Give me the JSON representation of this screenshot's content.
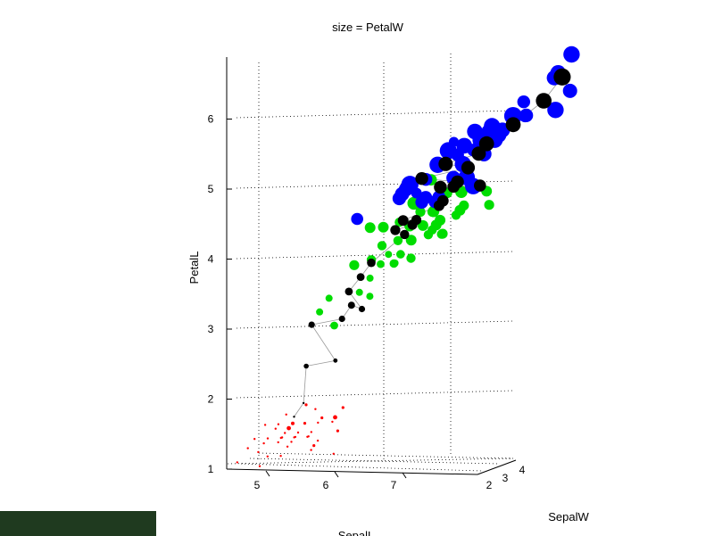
{
  "chart_data": {
    "type": "scatter",
    "title": "size = PetalW",
    "xlabel": "SepalL",
    "ylabel": "PetalL",
    "zlabel": "SepalW",
    "x_ticks": [
      "5",
      "6",
      "7"
    ],
    "y_ticks": [
      "1",
      "2",
      "3",
      "4",
      "5",
      "6"
    ],
    "z_ticks": [
      "2",
      "3",
      "4"
    ],
    "ylim": [
      1,
      7
    ],
    "grid": true,
    "series": [
      {
        "color": "#ff0000",
        "points": [
          [
            4.3,
            1.1,
            0.1
          ],
          [
            4.4,
            1.3,
            0.2
          ],
          [
            4.5,
            1.3,
            0.3
          ],
          [
            4.6,
            1.4,
            0.2
          ],
          [
            4.7,
            1.3,
            0.2
          ],
          [
            4.8,
            1.6,
            0.2
          ],
          [
            4.9,
            1.4,
            0.2
          ],
          [
            5.0,
            1.4,
            0.2
          ],
          [
            5.0,
            1.5,
            0.2
          ],
          [
            5.1,
            1.5,
            0.3
          ],
          [
            5.1,
            1.4,
            0.2
          ],
          [
            5.2,
            1.5,
            0.2
          ],
          [
            5.3,
            1.5,
            0.2
          ],
          [
            5.4,
            1.7,
            0.4
          ],
          [
            5.4,
            1.5,
            0.2
          ],
          [
            5.5,
            1.4,
            0.2
          ],
          [
            5.7,
            1.7,
            0.3
          ],
          [
            5.8,
            1.2,
            0.2
          ],
          [
            5.1,
            1.9,
            0.4
          ],
          [
            5.0,
            1.6,
            0.6
          ],
          [
            5.7,
            1.5,
            0.4
          ],
          [
            5.4,
            1.3,
            0.4
          ],
          [
            4.8,
            1.4,
            0.1
          ],
          [
            5.0,
            1.2,
            0.2
          ],
          [
            5.2,
            1.4,
            0.2
          ],
          [
            4.9,
            1.5,
            0.1
          ],
          [
            5.1,
            1.7,
            0.5
          ],
          [
            4.6,
            1.0,
            0.2
          ],
          [
            5.5,
            1.3,
            0.2
          ],
          [
            5.3,
            1.6,
            0.2
          ],
          [
            4.4,
            1.4,
            0.2
          ],
          [
            5.0,
            1.3,
            0.3
          ],
          [
            4.5,
            1.6,
            0.2
          ],
          [
            5.6,
            1.7,
            0.6
          ],
          [
            4.9,
            1.8,
            0.2
          ],
          [
            4.7,
            1.6,
            0.2
          ],
          [
            5.1,
            1.6,
            0.4
          ],
          [
            5.2,
            1.8,
            0.3
          ],
          [
            5.8,
            1.9,
            0.4
          ],
          [
            4.8,
            1.2,
            0.2
          ]
        ]
      },
      {
        "color": "#00dd00",
        "points": [
          [
            5.0,
            3.3,
            1.0
          ],
          [
            4.9,
            3.4,
            1.0
          ],
          [
            5.1,
            3.0,
            1.1
          ],
          [
            5.4,
            3.5,
            1.0
          ],
          [
            5.6,
            3.9,
            1.1
          ],
          [
            5.5,
            4.0,
            1.3
          ],
          [
            5.6,
            4.2,
            1.3
          ],
          [
            5.7,
            4.2,
            1.3
          ],
          [
            5.8,
            4.0,
            1.2
          ],
          [
            5.9,
            4.8,
            1.8
          ],
          [
            6.0,
            4.5,
            1.5
          ],
          [
            6.0,
            4.0,
            1.0
          ],
          [
            6.1,
            4.7,
            1.4
          ],
          [
            6.2,
            4.5,
            1.5
          ],
          [
            6.3,
            4.9,
            1.5
          ],
          [
            6.4,
            4.5,
            1.5
          ],
          [
            6.5,
            4.6,
            1.5
          ],
          [
            6.6,
            4.6,
            1.3
          ],
          [
            6.7,
            4.7,
            1.5
          ],
          [
            6.8,
            4.8,
            1.4
          ],
          [
            6.9,
            4.9,
            1.5
          ],
          [
            7.0,
            4.7,
            1.4
          ],
          [
            5.2,
            3.9,
            1.4
          ],
          [
            5.7,
            4.5,
            1.3
          ],
          [
            6.3,
            4.4,
            1.3
          ],
          [
            5.5,
            3.7,
            1.0
          ],
          [
            5.8,
            4.1,
            1.0
          ],
          [
            6.1,
            4.0,
            1.3
          ],
          [
            6.2,
            4.3,
            1.3
          ],
          [
            5.9,
            4.2,
            1.5
          ],
          [
            5.6,
            4.5,
            1.5
          ],
          [
            6.7,
            5.0,
            1.7
          ],
          [
            6.0,
            5.1,
            1.6
          ],
          [
            5.4,
            4.5,
            1.5
          ],
          [
            6.6,
            4.4,
            1.4
          ],
          [
            6.4,
            4.3,
            1.3
          ],
          [
            6.1,
            4.6,
            1.4
          ],
          [
            5.7,
            3.5,
            1.0
          ],
          [
            6.3,
            4.7,
            1.6
          ],
          [
            5.8,
            3.9,
            1.2
          ]
        ]
      },
      {
        "color": "#0000ff",
        "points": [
          [
            4.9,
            4.5,
            1.7
          ],
          [
            5.6,
            4.9,
            2.0
          ],
          [
            5.8,
            5.1,
            2.4
          ],
          [
            6.0,
            5.0,
            1.5
          ],
          [
            6.1,
            5.6,
            1.4
          ],
          [
            6.2,
            5.4,
            2.3
          ],
          [
            6.3,
            5.6,
            2.4
          ],
          [
            6.4,
            5.3,
            2.3
          ],
          [
            6.5,
            5.5,
            1.8
          ],
          [
            6.7,
            5.7,
            2.5
          ],
          [
            6.8,
            5.9,
            2.3
          ],
          [
            6.9,
            5.7,
            2.3
          ],
          [
            7.1,
            5.9,
            2.1
          ],
          [
            7.2,
            6.0,
            1.8
          ],
          [
            7.3,
            6.3,
            1.8
          ],
          [
            7.6,
            6.6,
            2.1
          ],
          [
            7.7,
            6.7,
            2.2
          ],
          [
            7.7,
            6.9,
            2.3
          ],
          [
            7.9,
            6.4,
            2.0
          ],
          [
            7.4,
            6.1,
            1.9
          ],
          [
            6.4,
            5.6,
            2.2
          ],
          [
            6.3,
            5.1,
            1.5
          ],
          [
            6.5,
            5.8,
            2.2
          ],
          [
            6.7,
            5.8,
            1.8
          ],
          [
            6.9,
            5.1,
            2.3
          ],
          [
            5.7,
            5.0,
            2.0
          ],
          [
            5.9,
            5.1,
            1.8
          ],
          [
            6.2,
            4.8,
            1.8
          ],
          [
            6.3,
            4.9,
            1.8
          ],
          [
            6.4,
            5.5,
            1.8
          ],
          [
            6.0,
            4.8,
            1.8
          ],
          [
            5.8,
            5.1,
            1.9
          ],
          [
            7.2,
            6.1,
            2.5
          ],
          [
            7.7,
            6.1,
            2.3
          ],
          [
            6.7,
            5.2,
            2.3
          ],
          [
            6.1,
            4.9,
            1.8
          ],
          [
            6.5,
            5.2,
            2.0
          ],
          [
            6.8,
            5.5,
            2.1
          ],
          [
            7.0,
            5.8,
            2.2
          ],
          [
            5.7,
            4.9,
            1.9
          ]
        ]
      },
      {
        "color": "#000000",
        "points": [
          [
            5.0,
            1.9,
            0.3
          ],
          [
            5.1,
            1.8,
            0.3
          ],
          [
            5.0,
            2.5,
            0.7
          ],
          [
            4.9,
            3.1,
            0.9
          ],
          [
            5.3,
            3.3,
            1.0
          ],
          [
            5.2,
            3.5,
            1.1
          ],
          [
            5.4,
            3.2,
            0.9
          ],
          [
            5.6,
            4.0,
            1.2
          ],
          [
            5.8,
            4.3,
            1.3
          ],
          [
            6.0,
            4.5,
            1.4
          ],
          [
            6.1,
            4.6,
            1.4
          ],
          [
            6.2,
            4.7,
            1.5
          ],
          [
            6.3,
            4.8,
            1.6
          ],
          [
            6.4,
            5.0,
            1.7
          ],
          [
            6.5,
            5.1,
            1.8
          ],
          [
            6.6,
            5.3,
            1.9
          ],
          [
            6.7,
            5.5,
            2.0
          ],
          [
            6.9,
            5.7,
            2.1
          ],
          [
            7.1,
            5.9,
            2.1
          ],
          [
            7.4,
            6.2,
            2.2
          ],
          [
            7.7,
            6.6,
            2.4
          ],
          [
            6.0,
            5.2,
            1.8
          ],
          [
            5.9,
            4.6,
            1.5
          ],
          [
            6.3,
            5.4,
            2.0
          ],
          [
            5.7,
            4.4,
            1.4
          ],
          [
            5.5,
            3.8,
            1.1
          ],
          [
            5.3,
            2.5,
            0.6
          ],
          [
            5.6,
            3.3,
            0.9
          ],
          [
            6.8,
            5.0,
            1.7
          ],
          [
            6.2,
            5.0,
            1.8
          ]
        ]
      }
    ],
    "trails": true
  }
}
